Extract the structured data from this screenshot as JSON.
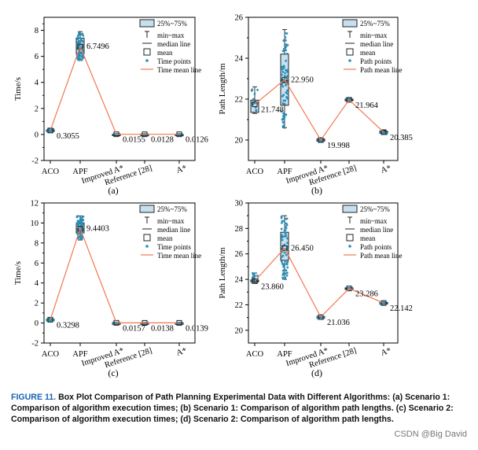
{
  "caption": {
    "tag": "FIGURE 11.",
    "text": "Box Plot Comparison of Path Planning Experimental Data with Different Algorithms: (a) Scenario 1: Comparison of algorithm execution times; (b) Scenario 1: Comparison of algorithm path lengths. (c) Scenario 2: Comparison of algorithm execution times; (d) Scenario 2: Comparison of algorithm path lengths."
  },
  "watermark": "CSDN @Big David",
  "colors": {
    "box": "#c6e0f0",
    "point": "#2a8fb8",
    "line": "#f07850",
    "axis": "#000000"
  },
  "chart_data": [
    {
      "type": "box",
      "panel_label": "(a)",
      "title": "",
      "xlabel": "",
      "ylabel": "Time/s",
      "categories": [
        "ACO",
        "APF",
        "Improved A*",
        "Reference [28]",
        "A*"
      ],
      "ylim": [
        -2,
        9
      ],
      "yticks": [
        -2,
        0,
        2,
        4,
        6,
        8
      ],
      "means": [
        0.3055,
        6.7496,
        0.0155,
        0.0128,
        0.0126
      ],
      "mean_labels": [
        "0.3055",
        "6.7496",
        "0.0155",
        "0.0128",
        "0.0126"
      ],
      "q1": [
        0.25,
        6.2,
        0.005,
        0.005,
        0.005
      ],
      "q3": [
        0.35,
        7.4,
        0.025,
        0.02,
        0.02
      ],
      "min": [
        0.2,
        5.7,
        0.0,
        0.0,
        0.0
      ],
      "max": [
        0.42,
        7.9,
        0.04,
        0.03,
        0.03
      ],
      "median": [
        0.3,
        6.7,
        0.015,
        0.012,
        0.012
      ],
      "legend": [
        "25%~75%",
        "min~max",
        "median line",
        "mean",
        "Time points",
        "Time mean line"
      ]
    },
    {
      "type": "box",
      "panel_label": "(b)",
      "title": "",
      "xlabel": "",
      "ylabel": "Path Length/m",
      "categories": [
        "ACO",
        "APF",
        "Improved A*",
        "Reference [28]",
        "A*"
      ],
      "ylim": [
        19.0,
        26.0
      ],
      "yticks": [
        20,
        22,
        24,
        26
      ],
      "means": [
        21.748,
        22.95,
        19.998,
        21.964,
        20.385
      ],
      "mean_labels": [
        "21.748",
        "22.950",
        "19.998",
        "21.964",
        "20.385"
      ],
      "q1": [
        21.35,
        21.7,
        19.95,
        21.92,
        20.33
      ],
      "q3": [
        21.95,
        24.2,
        20.05,
        22.0,
        20.43
      ],
      "min": [
        21.3,
        20.6,
        19.92,
        21.9,
        20.3
      ],
      "max": [
        22.6,
        25.4,
        20.08,
        22.05,
        20.46
      ],
      "median": [
        21.8,
        22.9,
        20.0,
        21.96,
        20.38
      ],
      "legend": [
        "25%~75%",
        "min~max",
        "median line",
        "mean",
        "Path points",
        "Path mean line"
      ]
    },
    {
      "type": "box",
      "panel_label": "(c)",
      "title": "",
      "xlabel": "",
      "ylabel": "Time/s",
      "categories": [
        "ACO",
        "APF",
        "Improved A*",
        "Reference [28]",
        "A*"
      ],
      "ylim": [
        -2,
        12
      ],
      "yticks": [
        -2,
        0,
        2,
        4,
        6,
        8,
        10,
        12
      ],
      "means": [
        0.3298,
        9.4403,
        0.0157,
        0.0138,
        0.0139
      ],
      "mean_labels": [
        "0.3298",
        "9.4403",
        "0.0157",
        "0.0138",
        "0.0139"
      ],
      "q1": [
        0.27,
        9.0,
        0.005,
        0.005,
        0.005
      ],
      "q3": [
        0.38,
        10.0,
        0.025,
        0.02,
        0.02
      ],
      "min": [
        0.22,
        8.3,
        0.0,
        0.0,
        0.0
      ],
      "max": [
        0.45,
        10.7,
        0.04,
        0.03,
        0.03
      ],
      "median": [
        0.33,
        9.4,
        0.015,
        0.014,
        0.014
      ],
      "legend": [
        "25%~75%",
        "min~max",
        "median line",
        "mean",
        "Time points",
        "Time mean line"
      ]
    },
    {
      "type": "box",
      "panel_label": "(d)",
      "title": "",
      "xlabel": "",
      "ylabel": "Path Length/m",
      "categories": [
        "ACO",
        "APF",
        "Improved A*",
        "Reference [28]",
        "A*"
      ],
      "ylim": [
        19.0,
        30.0
      ],
      "yticks": [
        20,
        22,
        24,
        26,
        28,
        30
      ],
      "means": [
        23.86,
        26.45,
        21.036,
        23.286,
        22.142
      ],
      "mean_labels": [
        "23.860",
        "26.450",
        "21.036",
        "23.286",
        "22.142"
      ],
      "q1": [
        23.8,
        25.5,
        20.98,
        23.24,
        22.1
      ],
      "q3": [
        23.95,
        27.7,
        21.08,
        23.33,
        22.19
      ],
      "min": [
        23.7,
        24.0,
        20.95,
        23.2,
        22.05
      ],
      "max": [
        24.5,
        29.0,
        21.1,
        23.36,
        22.22
      ],
      "median": [
        23.87,
        26.4,
        21.03,
        23.28,
        22.14
      ],
      "legend": [
        "25%~75%",
        "min~max",
        "median line",
        "mean",
        "Path points",
        "Path mean line"
      ]
    }
  ]
}
